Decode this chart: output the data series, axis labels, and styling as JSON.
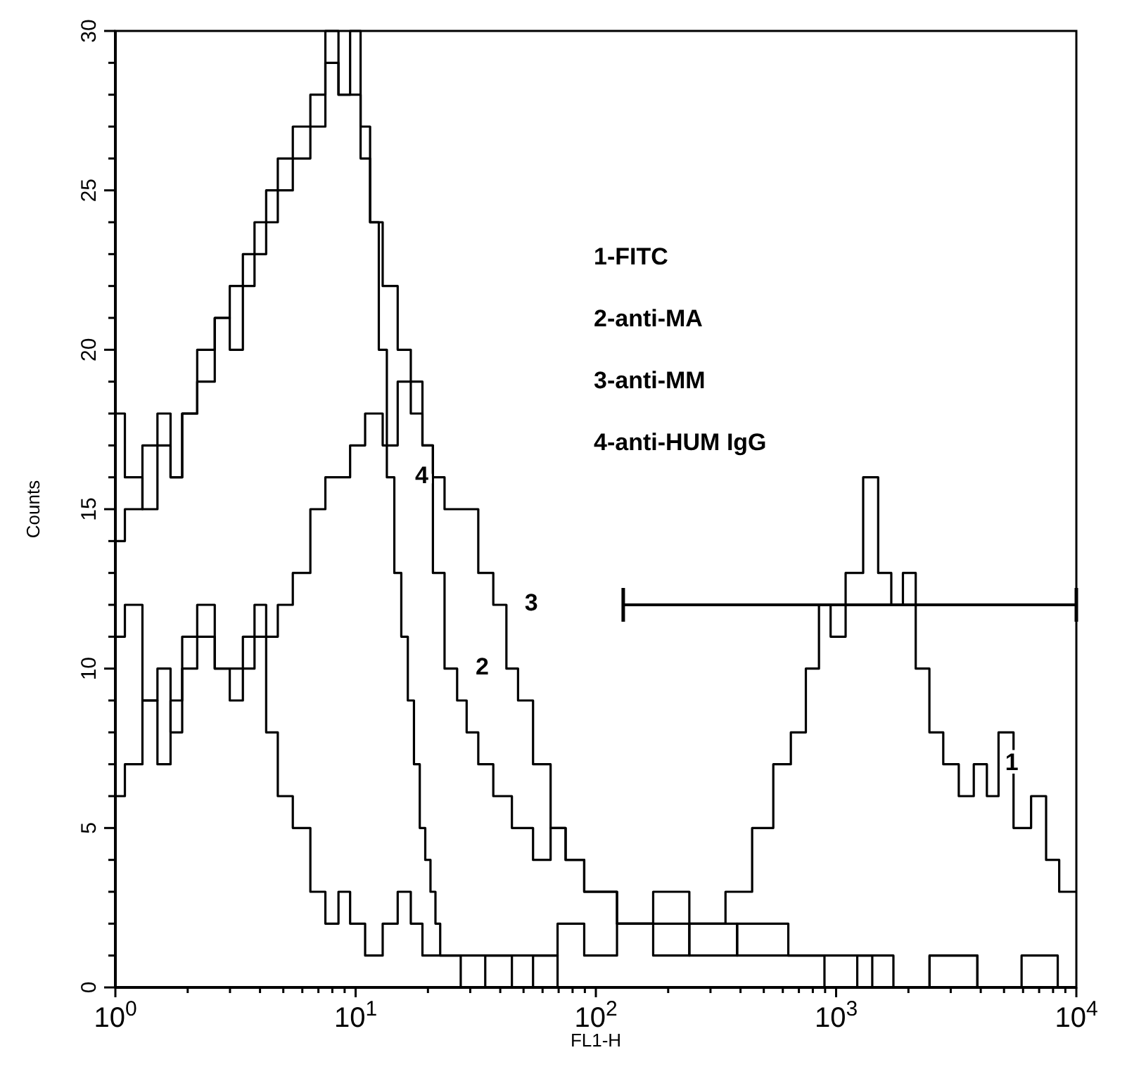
{
  "chart_data": {
    "type": "step",
    "xlabel": "FL1-H",
    "ylabel": "Counts",
    "log": "x",
    "xlim": [
      1,
      10000
    ],
    "ylim": [
      0,
      30
    ],
    "xticks": [
      {
        "value": 1,
        "label": "10$^{0}$"
      },
      {
        "value": 2,
        "label": null
      },
      {
        "value": 3,
        "label": null
      },
      {
        "value": 4,
        "label": null
      },
      {
        "value": 5,
        "label": null
      },
      {
        "value": 6,
        "label": null
      },
      {
        "value": 7,
        "label": null
      },
      {
        "value": 8,
        "label": null
      },
      {
        "value": 9,
        "label": null
      },
      {
        "value": 10,
        "label": "10$^{1}$"
      },
      {
        "value": 20,
        "label": null
      },
      {
        "value": 30,
        "label": null
      },
      {
        "value": 40,
        "label": null
      },
      {
        "value": 50,
        "label": null
      },
      {
        "value": 60,
        "label": null
      },
      {
        "value": 70,
        "label": null
      },
      {
        "value": 80,
        "label": null
      },
      {
        "value": 90,
        "label": null
      },
      {
        "value": 100,
        "label": "10$^{2}$"
      },
      {
        "value": 200,
        "label": null
      },
      {
        "value": 300,
        "label": null
      },
      {
        "value": 400,
        "label": null
      },
      {
        "value": 500,
        "label": null
      },
      {
        "value": 600,
        "label": null
      },
      {
        "value": 700,
        "label": null
      },
      {
        "value": 800,
        "label": null
      },
      {
        "value": 900,
        "label": null
      },
      {
        "value": 1000,
        "label": "10$^{3}$"
      },
      {
        "value": 2000,
        "label": null
      },
      {
        "value": 3000,
        "label": null
      },
      {
        "value": 4000,
        "label": null
      },
      {
        "value": 5000,
        "label": null
      },
      {
        "value": 6000,
        "label": null
      },
      {
        "value": 7000,
        "label": null
      },
      {
        "value": 8000,
        "label": null
      },
      {
        "value": 9000,
        "label": null
      },
      {
        "value": 10000,
        "label": "10$^{4}$"
      }
    ],
    "yticks": [
      0,
      {
        "value": 1,
        "label": null
      },
      {
        "value": 2,
        "label": null
      },
      {
        "value": 3,
        "label": null
      },
      {
        "value": 4,
        "label": null
      },
      5,
      {
        "value": 6,
        "label": null
      },
      {
        "value": 7,
        "label": null
      },
      {
        "value": 8,
        "label": null
      },
      {
        "value": 9,
        "label": null
      },
      10,
      {
        "value": 11,
        "label": null
      },
      {
        "value": 12,
        "label": null
      },
      {
        "value": 13,
        "label": null
      },
      {
        "value": 14,
        "label": null
      },
      15,
      {
        "value": 16,
        "label": null
      },
      {
        "value": 17,
        "label": null
      },
      {
        "value": 18,
        "label": null
      },
      {
        "value": 19,
        "label": null
      },
      20,
      {
        "value": 21,
        "label": null
      },
      {
        "value": 22,
        "label": null
      },
      {
        "value": 23,
        "label": null
      },
      {
        "value": 24,
        "label": null
      },
      25,
      {
        "value": 26,
        "label": null
      },
      {
        "value": 27,
        "label": null
      },
      {
        "value": 28,
        "label": null
      },
      {
        "value": 29,
        "label": null
      },
      30
    ],
    "series": [
      {
        "color": "#000000",
        "x": [
          1,
          1.2,
          1.4,
          1.6,
          1.8,
          2,
          2.4,
          2.8,
          3.2,
          3.6,
          4,
          4.5,
          5,
          6,
          7,
          8,
          9,
          10,
          12,
          14,
          16,
          18,
          20,
          25,
          30,
          40,
          60,
          80,
          100,
          150,
          200,
          300,
          400,
          500,
          600,
          700,
          800,
          900,
          1000,
          1200,
          1400,
          1600,
          1800,
          2000,
          2300,
          2600,
          3000,
          3500,
          4000,
          4500,
          5000,
          6000,
          7000,
          8000,
          9000,
          10000
        ],
        "values": [
          6,
          7,
          9,
          7,
          9,
          10,
          11,
          10,
          9,
          10,
          11,
          8,
          6,
          5,
          3,
          2,
          3,
          2,
          1,
          2,
          3,
          2,
          1,
          1,
          0,
          1,
          1,
          2,
          1,
          2,
          1,
          2,
          3,
          5,
          7,
          8,
          10,
          12,
          11,
          13,
          16,
          13,
          12,
          13,
          10,
          8,
          7,
          6,
          7,
          6,
          8,
          5,
          6,
          4,
          3,
          3
        ]
      },
      {
        "color": "#000000",
        "x": [
          1,
          1.2,
          1.4,
          1.6,
          1.8,
          2,
          2.4,
          2.8,
          3.2,
          3.6,
          4,
          4.5,
          5,
          6,
          7,
          8,
          9,
          10,
          11,
          12,
          14,
          16,
          18,
          20,
          22,
          25,
          28,
          30,
          35,
          40,
          50,
          60,
          70,
          80,
          100,
          150,
          200,
          300,
          500,
          800,
          1000,
          1500,
          2000,
          3000,
          5000,
          7000,
          10000
        ],
        "values": [
          18,
          16,
          15,
          17,
          16,
          18,
          20,
          21,
          22,
          23,
          24,
          25,
          26,
          27,
          28,
          30,
          28,
          30,
          27,
          24,
          22,
          20,
          19,
          17,
          13,
          10,
          9,
          8,
          7,
          6,
          5,
          4,
          5,
          4,
          3,
          2,
          3,
          2,
          1,
          1,
          0,
          1,
          0,
          1,
          0,
          1,
          0
        ]
      },
      {
        "color": "#000000",
        "x": [
          1,
          1.2,
          1.4,
          1.6,
          1.8,
          2,
          2.4,
          2.8,
          3.2,
          3.6,
          4,
          4.5,
          5,
          6,
          7,
          8,
          9,
          10,
          12,
          14,
          16,
          18,
          20,
          22,
          25,
          30,
          35,
          40,
          45,
          50,
          60,
          70,
          80,
          100,
          150,
          200,
          300,
          500,
          800,
          1000,
          2000,
          3000,
          5000,
          10000
        ],
        "values": [
          11,
          12,
          9,
          10,
          8,
          11,
          12,
          10,
          10,
          11,
          12,
          11,
          12,
          13,
          15,
          16,
          16,
          17,
          18,
          17,
          19,
          18,
          17,
          16,
          15,
          15,
          13,
          12,
          10,
          9,
          7,
          5,
          4,
          3,
          2,
          2,
          1,
          2,
          1,
          1,
          0,
          1,
          0,
          0
        ]
      },
      {
        "color": "#000000",
        "x": [
          1,
          1.2,
          1.4,
          1.6,
          1.8,
          2,
          2.4,
          2.8,
          3.2,
          3.6,
          4,
          4.5,
          5,
          6,
          7,
          8,
          9,
          10,
          11,
          12,
          13,
          14,
          15,
          16,
          17,
          18,
          19,
          20,
          21,
          22,
          23,
          25,
          30,
          40,
          50,
          60,
          80,
          100,
          200,
          1000,
          10000
        ],
        "values": [
          14,
          15,
          17,
          18,
          16,
          18,
          19,
          21,
          20,
          22,
          23,
          24,
          25,
          26,
          27,
          29,
          28,
          28,
          26,
          24,
          20,
          16,
          13,
          11,
          9,
          7,
          5,
          4,
          3,
          2,
          1,
          1,
          1,
          1,
          0,
          1,
          0,
          0,
          0,
          0,
          0
        ]
      },
      {
        "type": "line",
        "color": "#000000",
        "x": [
          130,
          10000
        ],
        "values": [
          12,
          12
        ]
      }
    ],
    "annotations": [
      "1-FITC",
      "2-anti-MA",
      "3-anti-MM",
      "4-anti-HUM IgG",
      {
        "text": "1",
        "x": 4000,
        "y": 7
      },
      {
        "text": "2",
        "x": 25,
        "y": 10
      },
      {
        "text": "3",
        "x": 40,
        "y": 12
      },
      {
        "text": "4",
        "x": 14,
        "y": 16
      }
    ]
  }
}
